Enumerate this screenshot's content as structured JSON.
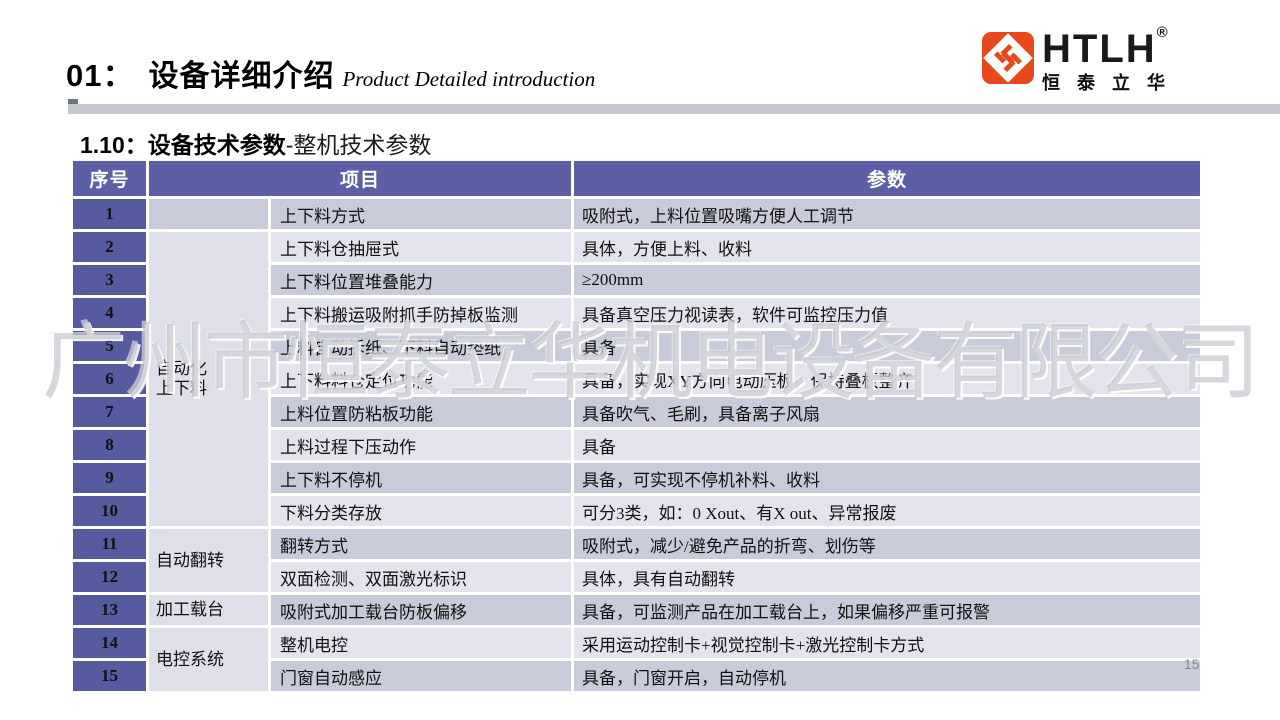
{
  "colors": {
    "accent_purple_header": "#5c5fa5",
    "accent_purple_num": "#565a9f",
    "band_dark": "#c9cada",
    "band_light": "#e3e3ed",
    "group_cell": "#dedfe9",
    "brand_orange": "#e8481c",
    "divider_gray": "#c4c8cd"
  },
  "header": {
    "section_number": "01：",
    "title_cn": "设备详细介绍",
    "title_en": "Product Detailed introduction",
    "logo": {
      "icon": "htlh-diamond-monogram-icon",
      "brand": "HTLH",
      "registered": "®",
      "brand_cn": "恒泰立华"
    }
  },
  "subtitle": {
    "bold": "1.10：设备技术参数",
    "rest": "-整机技术参数"
  },
  "table": {
    "columns": [
      "序号",
      "项目",
      "参数"
    ],
    "rows": [
      {
        "num": "1",
        "group": {
          "label": "",
          "span": 1
        },
        "item": "上下料方式",
        "param": "吸附式，上料位置吸嘴方便人工调节"
      },
      {
        "num": "2",
        "group": {
          "label": "自动化\n上下料",
          "span": 9
        },
        "item": "上下料仓抽屉式",
        "param": "具体，方便上料、收料"
      },
      {
        "num": "3",
        "item": "上下料位置堆叠能力",
        "param": "≥200mm"
      },
      {
        "num": "4",
        "item": "上下料搬运吸附抓手防掉板监测",
        "param": "具备真空压力视读表，软件可监控压力值"
      },
      {
        "num": "5",
        "item": "上料自动拆纸、下料自动垫纸",
        "param": "具备"
      },
      {
        "num": "6",
        "item": "上下料料仓定位功能",
        "param": "具备，实现XY方向电动压板，保持叠板整齐"
      },
      {
        "num": "7",
        "item": "上料位置防粘板功能",
        "param": "具备吹气、毛刷，具备离子风扇"
      },
      {
        "num": "8",
        "item": "上料过程下压动作",
        "param": "具备"
      },
      {
        "num": "9",
        "item": "上下料不停机",
        "param": "具备，可实现不停机补料、收料"
      },
      {
        "num": "10",
        "item": "下料分类存放",
        "param": "可分3类，如：0 Xout、有X out、异常报废"
      },
      {
        "num": "11",
        "group": {
          "label": "自动翻转",
          "span": 2
        },
        "item": "翻转方式",
        "param": "吸附式，减少/避免产品的折弯、划伤等"
      },
      {
        "num": "12",
        "item": "双面检测、双面激光标识",
        "param": "具体，具有自动翻转"
      },
      {
        "num": "13",
        "group": {
          "label": "加工载台",
          "span": 1
        },
        "item": "吸附式加工载台防板偏移",
        "param": "具备，可监测产品在加工载台上，如果偏移严重可报警"
      },
      {
        "num": "14",
        "group": {
          "label": "电控系统",
          "span": 2
        },
        "item": "整机电控",
        "param": "采用运动控制卡+视觉控制卡+激光控制卡方式"
      },
      {
        "num": "15",
        "item": "门窗自动感应",
        "param": "具备，门窗开启，自动停机"
      }
    ]
  },
  "watermark": "广州市恒泰立华机电设备有限公司",
  "footer": {
    "page_number": "15"
  }
}
